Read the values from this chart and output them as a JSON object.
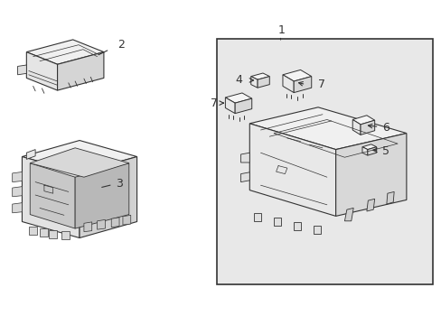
{
  "bg_color": "#ffffff",
  "line_color": "#333333",
  "light_gray_box": "#e8e8e8",
  "fig_width": 4.89,
  "fig_height": 3.6,
  "dpi": 100
}
